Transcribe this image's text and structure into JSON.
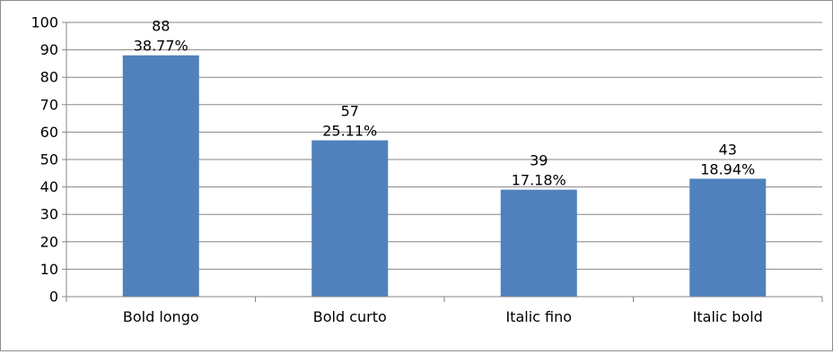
{
  "chart_data": {
    "type": "bar",
    "categories": [
      "Bold longo",
      "Bold curto",
      "Italic fino",
      "Italic bold"
    ],
    "values": [
      88,
      57,
      39,
      43
    ],
    "percent_labels": [
      "38.77%",
      "25.11%",
      "17.18%",
      "18.94%"
    ],
    "title": "",
    "xlabel": "",
    "ylabel": "",
    "ylim": [
      0,
      100
    ],
    "yticks": [
      "0",
      "10",
      "20",
      "30",
      "40",
      "50",
      "60",
      "70",
      "80",
      "90",
      "100"
    ],
    "grid": true,
    "legend": "none",
    "colors": {
      "bar": "#4f81bd",
      "grid": "#868686",
      "axis": "#868686"
    }
  }
}
